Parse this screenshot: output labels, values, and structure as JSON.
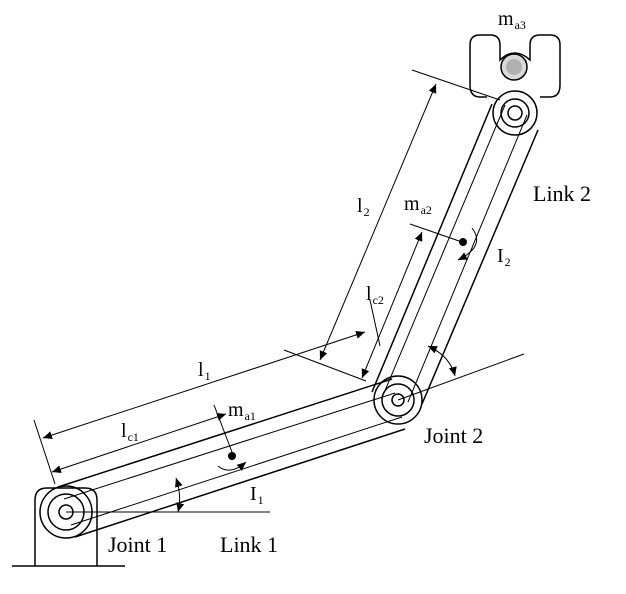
{
  "labels": {
    "joint1": "Joint 1",
    "joint2": "Joint 2",
    "link1": "Link 1",
    "link2": "Link 2",
    "l1_base": "l",
    "l1_sub": "1",
    "lc1_base": "l",
    "lc1_sub": "c1",
    "l2_base": "l",
    "l2_sub": "2",
    "lc2_base": "l",
    "lc2_sub": "c2",
    "ma1_base": "m",
    "ma1_sub": "a1",
    "ma2_base": "m",
    "ma2_sub": "a2",
    "ma3_base": "m",
    "ma3_sub": "a3",
    "I1_base": "I",
    "I1_sub": "1",
    "I2_base": "I",
    "I2_sub": "2"
  }
}
